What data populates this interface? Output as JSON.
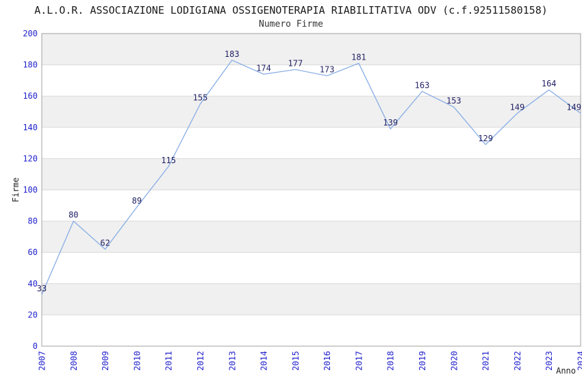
{
  "header": {
    "title": "A.L.O.R. ASSOCIAZIONE LODIGIANA OSSIGENOTERAPIA RIABILITATIVA ODV (c.f.92511580158)",
    "subtitle": "Numero Firme"
  },
  "chart_data": {
    "type": "line",
    "title": "A.L.O.R. ASSOCIAZIONE LODIGIANA OSSIGENOTERAPIA RIABILITATIVA ODV (c.f.92511580158)",
    "subtitle": "Numero Firme",
    "xlabel": "Anno",
    "ylabel": "Firme",
    "x": [
      2007,
      2008,
      2009,
      2010,
      2011,
      2012,
      2013,
      2014,
      2015,
      2016,
      2017,
      2018,
      2019,
      2020,
      2021,
      2022,
      2023,
      2024
    ],
    "series": [
      {
        "name": "Numero Firme",
        "values": [
          33,
          80,
          62,
          89,
          115,
          155,
          183,
          174,
          177,
          173,
          181,
          139,
          163,
          153,
          129,
          149,
          164,
          149
        ]
      }
    ],
    "ylim": [
      0,
      200
    ],
    "ytick_step": 20,
    "yticks": [
      0,
      20,
      40,
      60,
      80,
      100,
      120,
      140,
      160,
      180,
      200
    ],
    "grid": "horizontal-bands-alternating",
    "legend_position": "none",
    "point_labels_visible": true,
    "colors": {
      "line": "#84abe4",
      "tick_label": "#2222cc",
      "point_label": "#222266",
      "band_gray": "#f0f0f0",
      "band_white": "#ffffff",
      "gridline": "#d9d9d9",
      "plot_border": "#a0a0a0",
      "axis_title": "#222222",
      "title_text": "#1a1a1a"
    }
  }
}
